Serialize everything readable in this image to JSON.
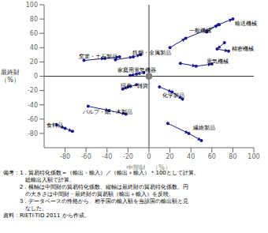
{
  "chart_data": {
    "type": "scatter",
    "xlabel": "中間財　（%）",
    "ylabel": "最終財\n（%）",
    "xlim": [
      -100,
      100
    ],
    "ylim": [
      -100,
      100
    ],
    "xticks": [
      -80,
      -60,
      -40,
      -20,
      0,
      20,
      40,
      60,
      80,
      100
    ],
    "yticks": [
      -80,
      -60,
      -40,
      -20,
      0,
      20,
      40,
      60,
      80,
      100
    ],
    "grid": false,
    "color": "#1a1a8c",
    "marker": "circle",
    "line_style": "arrow",
    "origin": {
      "x": 0,
      "y": 0,
      "color": "#808080"
    },
    "notes": [
      "備考：1．貿易特化係数＝（輸出－輸入）／（輸出＋輸入）＊100として計算。",
      "　　　　総輸出入額で計算。",
      "　　　2．横軸は中間財の貿易特化係数、縦軸は最終財の貿易特化係数。円",
      "　　　　の大きさは中間財・最終財の貿易額（輸出＋輸入）を反映。",
      "　　　3．データベースの性格から、相手国の輸入額を当該国の輸出額と見",
      "　　　　なした。",
      "資料：RIETI-TID 2011 から作成。"
    ],
    "series": [
      {
        "name": "一般機械",
        "label_pos": [
          38,
          64
        ],
        "x": [
          20,
          35,
          67
        ],
        "values": [
          40,
          53,
          72
        ]
      },
      {
        "name": "輸送機械",
        "label_pos": [
          82,
          73
        ],
        "x": [
          55,
          66,
          80
        ],
        "values": [
          62,
          72,
          80
        ]
      },
      {
        "name": "精密機械",
        "label_pos": [
          79,
          38
        ],
        "x": [
          72,
          65,
          76
        ],
        "values": [
          47,
          38,
          35
        ]
      },
      {
        "name": "電気機械",
        "label_pos": [
          55,
          20
        ],
        "x": [
          30,
          45,
          60
        ],
        "values": [
          18,
          14,
          17
        ]
      },
      {
        "name": "鉄鋼・金属製品",
        "label_pos": [
          -16,
          33
        ],
        "x": [
          -32,
          -15,
          -8
        ],
        "values": [
          23,
          27,
          30
        ]
      },
      {
        "name": "窯業・土石製品",
        "label_pos": [
          -67,
          27
        ],
        "x": [
          -62,
          -42,
          -28
        ],
        "values": [
          22,
          25,
          27
        ]
      },
      {
        "name": "家庭用電気機器",
        "label_pos": [
          -30,
          8
        ],
        "x": [
          -5,
          -12,
          -18
        ],
        "values": [
          5,
          3,
          1
        ]
      },
      {
        "name": "玩具・雑貨",
        "label_pos": [
          -27,
          -14
        ],
        "x": [
          -12,
          -20,
          -25
        ],
        "values": [
          -12,
          -15,
          -18
        ]
      },
      {
        "name": "化学製品",
        "label_pos": [
          13,
          -27
        ],
        "x": [
          10,
          22,
          32
        ],
        "values": [
          -15,
          -22,
          -32
        ]
      },
      {
        "name": "パルプ・紙・木製品",
        "label_pos": [
          -63,
          -50
        ],
        "x": [
          -58,
          -38,
          -22
        ],
        "values": [
          -42,
          -48,
          -53
        ]
      },
      {
        "name": "繊維製品",
        "label_pos": [
          42,
          -72
        ],
        "x": [
          18,
          38,
          50
        ],
        "values": [
          -66,
          -80,
          -90
        ]
      },
      {
        "name": "食料品",
        "label_pos": [
          -98,
          -69
        ],
        "x": [
          -88,
          -80,
          -73
        ],
        "values": [
          -68,
          -73,
          -77
        ]
      }
    ]
  }
}
